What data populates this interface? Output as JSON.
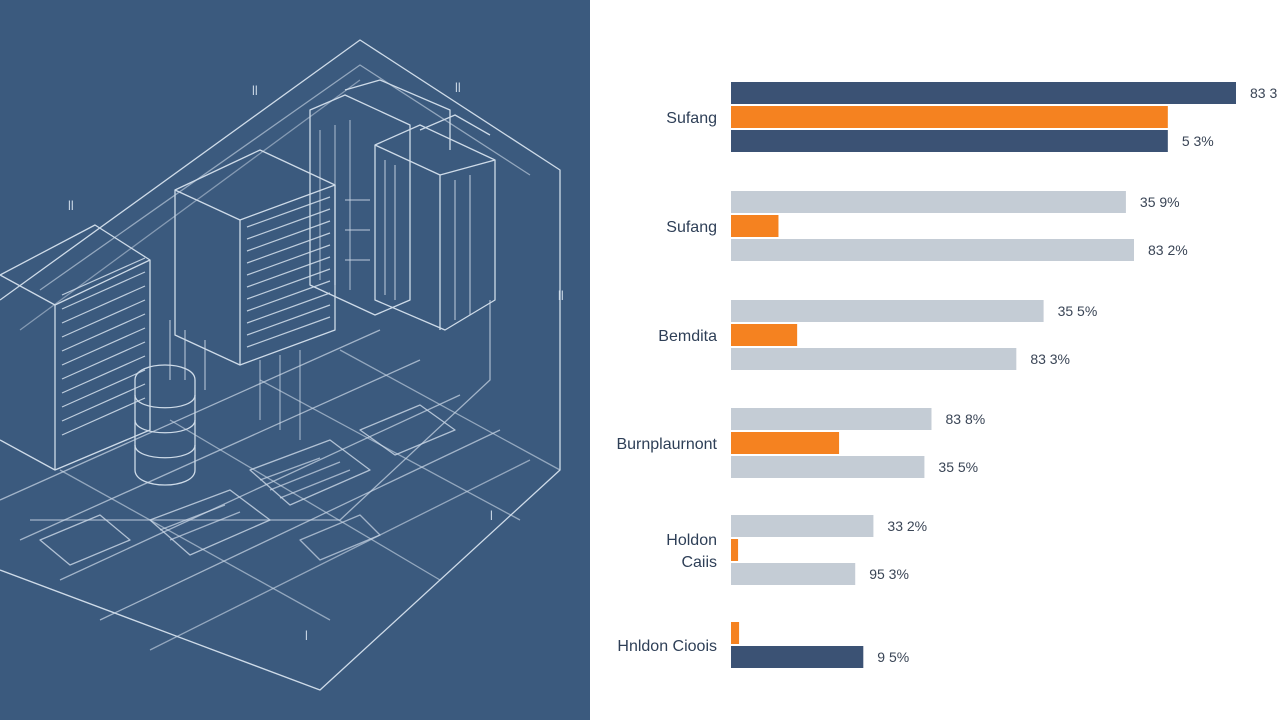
{
  "colors": {
    "navy": "#3b5274",
    "orange": "#f58220",
    "gray": "#c4ccd5",
    "panel": "#3b5a7e",
    "line": "#dbe6f2"
  },
  "blueprint": {
    "icon": "server-rack-blueprint-illustration",
    "marks": [
      "ll",
      "ll",
      "ll",
      "ll",
      "l",
      "l"
    ]
  },
  "chart_data": {
    "type": "bar",
    "orientation": "horizontal",
    "grid": false,
    "legend": "none",
    "xlim": [
      0,
      100
    ],
    "groups": [
      {
        "label": "Sufang",
        "bars": [
          {
            "role": "primary",
            "value": 100,
            "label": "83 3"
          },
          {
            "role": "highlight",
            "value": 86.5,
            "label": ""
          },
          {
            "role": "primary",
            "value": 86.5,
            "label": "5 3%"
          }
        ]
      },
      {
        "label": "Sufang",
        "bars": [
          {
            "role": "secondary",
            "value": 78.2,
            "label": "35 9%"
          },
          {
            "role": "highlight",
            "value": 9.4,
            "label": ""
          },
          {
            "role": "secondary",
            "value": 79.8,
            "label": "83 2%"
          }
        ]
      },
      {
        "label": "Bemdita",
        "bars": [
          {
            "role": "secondary",
            "value": 61.9,
            "label": "35 5%"
          },
          {
            "role": "highlight",
            "value": 13.1,
            "label": ""
          },
          {
            "role": "secondary",
            "value": 56.5,
            "label": "83 3%"
          }
        ]
      },
      {
        "label": "Burnplaurnont",
        "bars": [
          {
            "role": "secondary",
            "value": 39.7,
            "label": "83 8%"
          },
          {
            "role": "highlight",
            "value": 21.4,
            "label": ""
          },
          {
            "role": "secondary",
            "value": 38.3,
            "label": "35 5%"
          }
        ]
      },
      {
        "label": "Holdon\nCaiis",
        "bars": [
          {
            "role": "secondary",
            "value": 28.2,
            "label": "33 2%"
          },
          {
            "role": "highlight",
            "value": 1.4,
            "label": ""
          },
          {
            "role": "secondary",
            "value": 24.6,
            "label": "95 3%"
          }
        ]
      },
      {
        "label": "Hnldon Cioois",
        "bars": [
          {
            "role": "highlight",
            "value": 1.6,
            "label": ""
          },
          {
            "role": "primary",
            "value": 26.2,
            "label": "9 5%"
          }
        ]
      }
    ]
  }
}
